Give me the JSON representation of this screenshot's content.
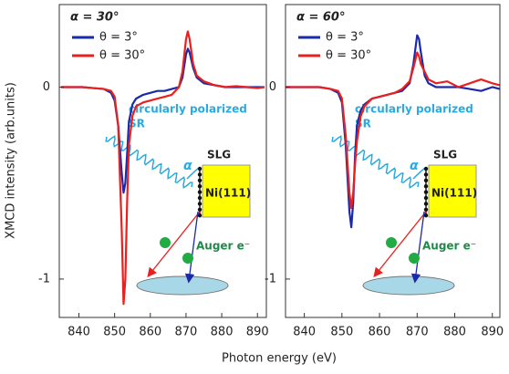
{
  "chart_data": [
    {
      "type": "line",
      "title": "α = 30°",
      "ylabel": "XMCD intensity  (arb.units)",
      "xlabel": "Photon energy  (eV)",
      "xlim": [
        834.5,
        892.5
      ],
      "ylim": [
        -1.2,
        0.43
      ],
      "xticks": [
        840,
        850,
        860,
        870,
        880,
        890
      ],
      "yticks": [
        -1,
        0
      ],
      "annotations": [
        "circularly polarized",
        "SR",
        "α",
        "SLG",
        "Ni(111)",
        "Auger e⁻"
      ],
      "x": [
        835,
        838,
        841,
        844,
        847,
        849,
        850,
        851,
        852,
        852.5,
        853,
        853.5,
        854,
        855,
        856,
        858,
        860,
        862,
        864,
        866,
        868,
        869,
        870,
        870.5,
        871,
        872,
        873,
        875,
        878,
        881,
        884,
        887,
        890,
        892
      ],
      "series": [
        {
          "name": "θ = 3°",
          "color": "#1a2aa8",
          "values": [
            0,
            0,
            0,
            -0.005,
            -0.01,
            -0.03,
            -0.07,
            -0.2,
            -0.45,
            -0.55,
            -0.5,
            -0.35,
            -0.18,
            -0.09,
            -0.06,
            -0.04,
            -0.03,
            -0.02,
            -0.02,
            -0.01,
            0,
            0.05,
            0.17,
            0.2,
            0.18,
            0.1,
            0.05,
            0.02,
            0.01,
            0,
            0,
            0,
            0,
            0
          ]
        },
        {
          "name": "θ = 30°",
          "color": "#e8201e",
          "values": [
            0,
            0,
            0,
            -0.005,
            -0.01,
            -0.02,
            -0.05,
            -0.2,
            -0.75,
            -1.13,
            -1.0,
            -0.6,
            -0.3,
            -0.15,
            -0.1,
            -0.08,
            -0.07,
            -0.06,
            -0.05,
            -0.04,
            0,
            0.08,
            0.25,
            0.29,
            0.25,
            0.12,
            0.06,
            0.03,
            0.01,
            0,
            0.005,
            0,
            -0.005,
            0
          ]
        }
      ]
    },
    {
      "type": "line",
      "title": "α = 60°",
      "xlim": [
        835,
        892
      ],
      "ylim": [
        -1.2,
        0.43
      ],
      "xticks": [
        840,
        850,
        860,
        870,
        880,
        890
      ],
      "yticks": [
        -1,
        0
      ],
      "annotations": [
        "circularly polarized",
        "SR",
        "α",
        "SLG",
        "Ni(111)",
        "Auger e⁻"
      ],
      "x": [
        835,
        838,
        841,
        844,
        847,
        849,
        850,
        851,
        852,
        852.5,
        853,
        853.5,
        854,
        855,
        856,
        858,
        860,
        862,
        864,
        866,
        868,
        869,
        870,
        870.5,
        871,
        872,
        873,
        875,
        878,
        881,
        884,
        887,
        890,
        892
      ],
      "series": [
        {
          "name": "θ = 3°",
          "color": "#1a2aa8",
          "values": [
            0,
            0,
            0,
            0,
            -0.01,
            -0.03,
            -0.08,
            -0.3,
            -0.65,
            -0.73,
            -0.6,
            -0.35,
            -0.2,
            -0.12,
            -0.09,
            -0.06,
            -0.05,
            -0.04,
            -0.03,
            -0.02,
            0.02,
            0.12,
            0.27,
            0.25,
            0.18,
            0.06,
            0.02,
            0,
            0,
            0,
            -0.01,
            -0.02,
            0,
            -0.01
          ]
        },
        {
          "name": "θ = 30°",
          "color": "#e8201e",
          "values": [
            0,
            0,
            0,
            0,
            -0.01,
            -0.02,
            -0.06,
            -0.25,
            -0.55,
            -0.63,
            -0.55,
            -0.4,
            -0.28,
            -0.15,
            -0.1,
            -0.06,
            -0.05,
            -0.04,
            -0.03,
            -0.01,
            0.03,
            0.1,
            0.18,
            0.16,
            0.12,
            0.08,
            0.04,
            0.02,
            0.03,
            0,
            0.02,
            0.04,
            0.02,
            0.01
          ]
        }
      ]
    }
  ]
}
